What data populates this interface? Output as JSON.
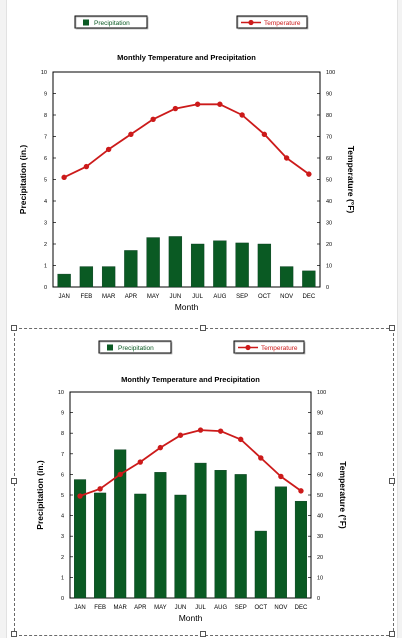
{
  "chart_data": [
    {
      "type": "bar+line",
      "title": "Monthly Temperature and Precipitation",
      "xlabel": "Month",
      "ylabel": "Precipitation (in.)",
      "y2label": "Temperature (°F)",
      "categories": [
        "JAN",
        "FEB",
        "MAR",
        "APR",
        "MAY",
        "JUN",
        "JUL",
        "AUG",
        "SEP",
        "OCT",
        "NOV",
        "DEC"
      ],
      "ylim": [
        0,
        10
      ],
      "y2lim": [
        0,
        100
      ],
      "yticks": [
        "0",
        "1",
        "2",
        "3",
        "4",
        "5",
        "6",
        "7",
        "8",
        "9",
        "10"
      ],
      "y2ticks": [
        "0",
        "10",
        "20",
        "30",
        "40",
        "50",
        "60",
        "70",
        "80",
        "90",
        "100"
      ],
      "legend_position": "top",
      "series": [
        {
          "name": "Precipitation",
          "kind": "bar",
          "axis": "left",
          "color": "#0a5a23",
          "values": [
            0.6,
            0.95,
            0.95,
            1.7,
            2.3,
            2.35,
            2.0,
            2.15,
            2.05,
            2.0,
            0.95,
            0.75
          ]
        },
        {
          "name": "Temperature",
          "kind": "line",
          "axis": "right",
          "color": "#cc1a1a",
          "values": [
            51,
            56,
            64,
            71,
            78,
            83,
            85,
            85,
            80,
            71,
            60,
            52.5
          ]
        }
      ]
    },
    {
      "type": "bar+line",
      "title": "Monthly Temperature and Precipitation",
      "xlabel": "Month",
      "ylabel": "Precipitation (in.)",
      "y2label": "Temperature (°F)",
      "categories": [
        "JAN",
        "FEB",
        "MAR",
        "APR",
        "MAY",
        "JUN",
        "JUL",
        "AUG",
        "SEP",
        "OCT",
        "NOV",
        "DEC"
      ],
      "ylim": [
        0,
        10
      ],
      "y2lim": [
        0,
        100
      ],
      "yticks": [
        "0",
        "1",
        "2",
        "3",
        "4",
        "5",
        "6",
        "7",
        "8",
        "9",
        "10"
      ],
      "y2ticks": [
        "0",
        "10",
        "20",
        "30",
        "40",
        "50",
        "60",
        "70",
        "80",
        "90",
        "100"
      ],
      "legend_position": "top",
      "series": [
        {
          "name": "Precipitation",
          "kind": "bar",
          "axis": "left",
          "color": "#0a5a23",
          "values": [
            5.75,
            5.1,
            7.2,
            5.05,
            6.1,
            5.0,
            6.55,
            6.2,
            6.0,
            3.25,
            5.4,
            4.7
          ]
        },
        {
          "name": "Temperature",
          "kind": "line",
          "axis": "right",
          "color": "#cc1a1a",
          "values": [
            49.5,
            53,
            60,
            66,
            73,
            79,
            81.5,
            81,
            77,
            68,
            59,
            52
          ]
        }
      ]
    }
  ]
}
